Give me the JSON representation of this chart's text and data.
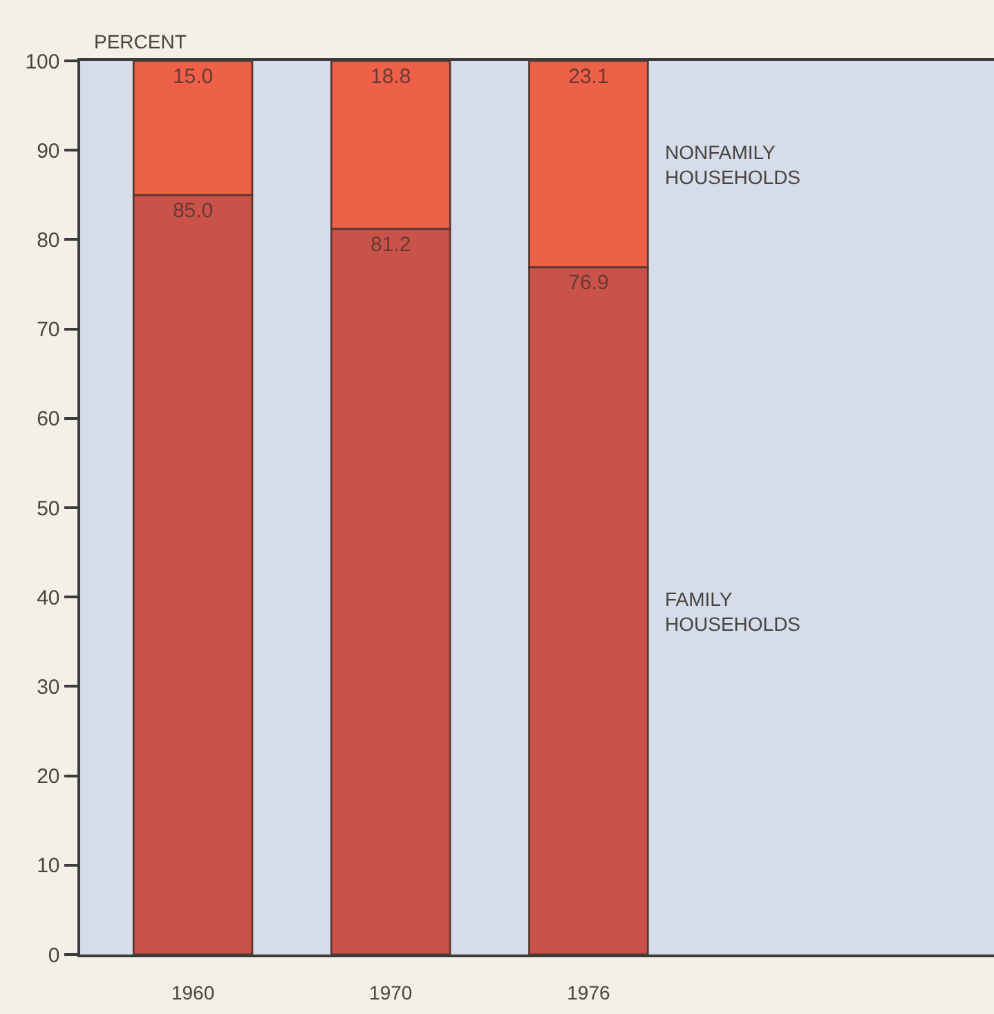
{
  "chart_data": {
    "type": "bar",
    "stacked": true,
    "ylabel": "PERCENT",
    "categories": [
      "1960",
      "1970",
      "1976"
    ],
    "series": [
      {
        "name": "FAMILY HOUSEHOLDS",
        "color": "#c9524a",
        "values": [
          85.0,
          81.2,
          76.9
        ],
        "value_labels": [
          "85.0",
          "81.2",
          "76.9"
        ]
      },
      {
        "name": "NONFAMILY HOUSEHOLDS",
        "color": "#ee6149",
        "values": [
          15.0,
          18.8,
          23.1
        ],
        "value_labels": [
          "15.0",
          "18.8",
          "23.1"
        ]
      }
    ],
    "ylim": [
      0,
      100
    ],
    "yticks": [
      0,
      10,
      20,
      30,
      40,
      50,
      60,
      70,
      80,
      90,
      100
    ]
  }
}
